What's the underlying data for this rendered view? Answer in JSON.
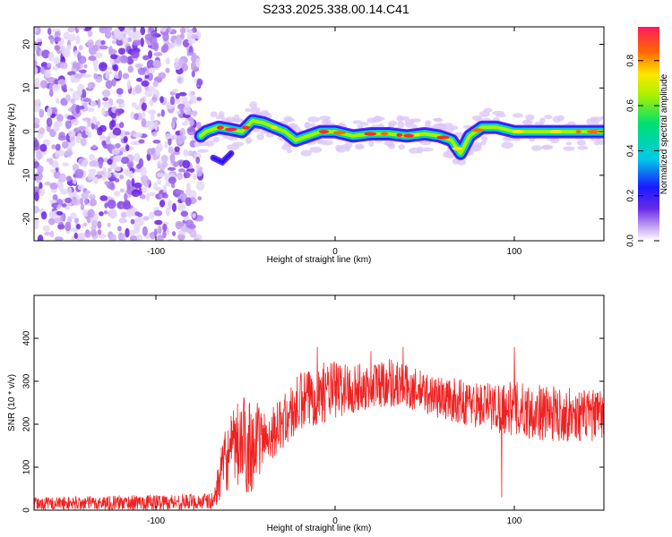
{
  "title": "S233.2025.338.00.14.C41",
  "chart_data": [
    {
      "type": "heatmap",
      "xlabel": "Height of straight line (km)",
      "ylabel": "Frequency (Hz)",
      "xlim": [
        -168,
        150
      ],
      "ylim": [
        -25,
        24
      ],
      "xticks": [
        -100,
        0,
        100
      ],
      "yticks": [
        -20,
        -10,
        0,
        10,
        20
      ],
      "colorbar": {
        "label": "Normalized spectral amplitude",
        "range": [
          0,
          0.95
        ],
        "ticks": [
          0.0,
          0.2,
          0.4,
          0.6,
          0.8
        ]
      },
      "noise_region_x": [
        -168,
        -75
      ],
      "ridge": [
        {
          "x": -75,
          "f": -1
        },
        {
          "x": -72,
          "f": 0
        },
        {
          "x": -65,
          "f": 1
        },
        {
          "x": -58,
          "f": 0.5
        },
        {
          "x": -52,
          "f": 0
        },
        {
          "x": -46,
          "f": 2.5
        },
        {
          "x": -40,
          "f": 2
        },
        {
          "x": -34,
          "f": 1
        },
        {
          "x": -28,
          "f": 0
        },
        {
          "x": -22,
          "f": -2
        },
        {
          "x": -15,
          "f": -1
        },
        {
          "x": -8,
          "f": 0
        },
        {
          "x": 0,
          "f": 0
        },
        {
          "x": 10,
          "f": -1
        },
        {
          "x": 20,
          "f": -0.5
        },
        {
          "x": 30,
          "f": -0.5
        },
        {
          "x": 40,
          "f": -1
        },
        {
          "x": 50,
          "f": -0.5
        },
        {
          "x": 58,
          "f": -1
        },
        {
          "x": 65,
          "f": -2
        },
        {
          "x": 70,
          "f": -5
        },
        {
          "x": 75,
          "f": -1
        },
        {
          "x": 82,
          "f": 1
        },
        {
          "x": 90,
          "f": 1
        },
        {
          "x": 100,
          "f": 0
        },
        {
          "x": 110,
          "f": 0
        },
        {
          "x": 120,
          "f": 0
        },
        {
          "x": 130,
          "f": 0
        },
        {
          "x": 140,
          "f": 0
        },
        {
          "x": 150,
          "f": 0
        }
      ],
      "branch": [
        {
          "x": -68,
          "f": -6
        },
        {
          "x": -63,
          "f": -7
        },
        {
          "x": -58,
          "f": -5
        }
      ]
    },
    {
      "type": "line",
      "xlabel": "Height of straight line (km)",
      "ylabel": "SNR (10 * v/v)",
      "xlim": [
        -168,
        150
      ],
      "ylim": [
        0,
        500
      ],
      "xticks": [
        -100,
        0,
        100
      ],
      "yticks": [
        0,
        100,
        200,
        300,
        400
      ],
      "color": "#ee2222",
      "envelope": [
        {
          "x": -168,
          "lo": 0,
          "hi": 30
        },
        {
          "x": -68,
          "lo": 0,
          "hi": 40
        },
        {
          "x": -62,
          "lo": 40,
          "hi": 180
        },
        {
          "x": -55,
          "lo": 50,
          "hi": 250
        },
        {
          "x": -48,
          "lo": 30,
          "hi": 280
        },
        {
          "x": -40,
          "lo": 100,
          "hi": 230
        },
        {
          "x": -30,
          "lo": 140,
          "hi": 260
        },
        {
          "x": -20,
          "lo": 170,
          "hi": 320
        },
        {
          "x": -10,
          "lo": 200,
          "hi": 340
        },
        {
          "x": 0,
          "lo": 210,
          "hi": 350
        },
        {
          "x": 15,
          "lo": 230,
          "hi": 340
        },
        {
          "x": 30,
          "lo": 240,
          "hi": 360
        },
        {
          "x": 45,
          "lo": 230,
          "hi": 330
        },
        {
          "x": 60,
          "lo": 210,
          "hi": 310
        },
        {
          "x": 80,
          "lo": 190,
          "hi": 300
        },
        {
          "x": 100,
          "lo": 170,
          "hi": 300
        },
        {
          "x": 120,
          "lo": 160,
          "hi": 290
        },
        {
          "x": 140,
          "lo": 160,
          "hi": 280
        },
        {
          "x": 150,
          "lo": 160,
          "hi": 280
        }
      ],
      "spikes": [
        {
          "x": 93,
          "y": 490
        },
        {
          "x": 93,
          "y": 30
        },
        {
          "x": 100,
          "y": 380
        },
        {
          "x": -10,
          "y": 380
        },
        {
          "x": 20,
          "y": 370
        },
        {
          "x": 38,
          "y": 380
        }
      ]
    }
  ]
}
